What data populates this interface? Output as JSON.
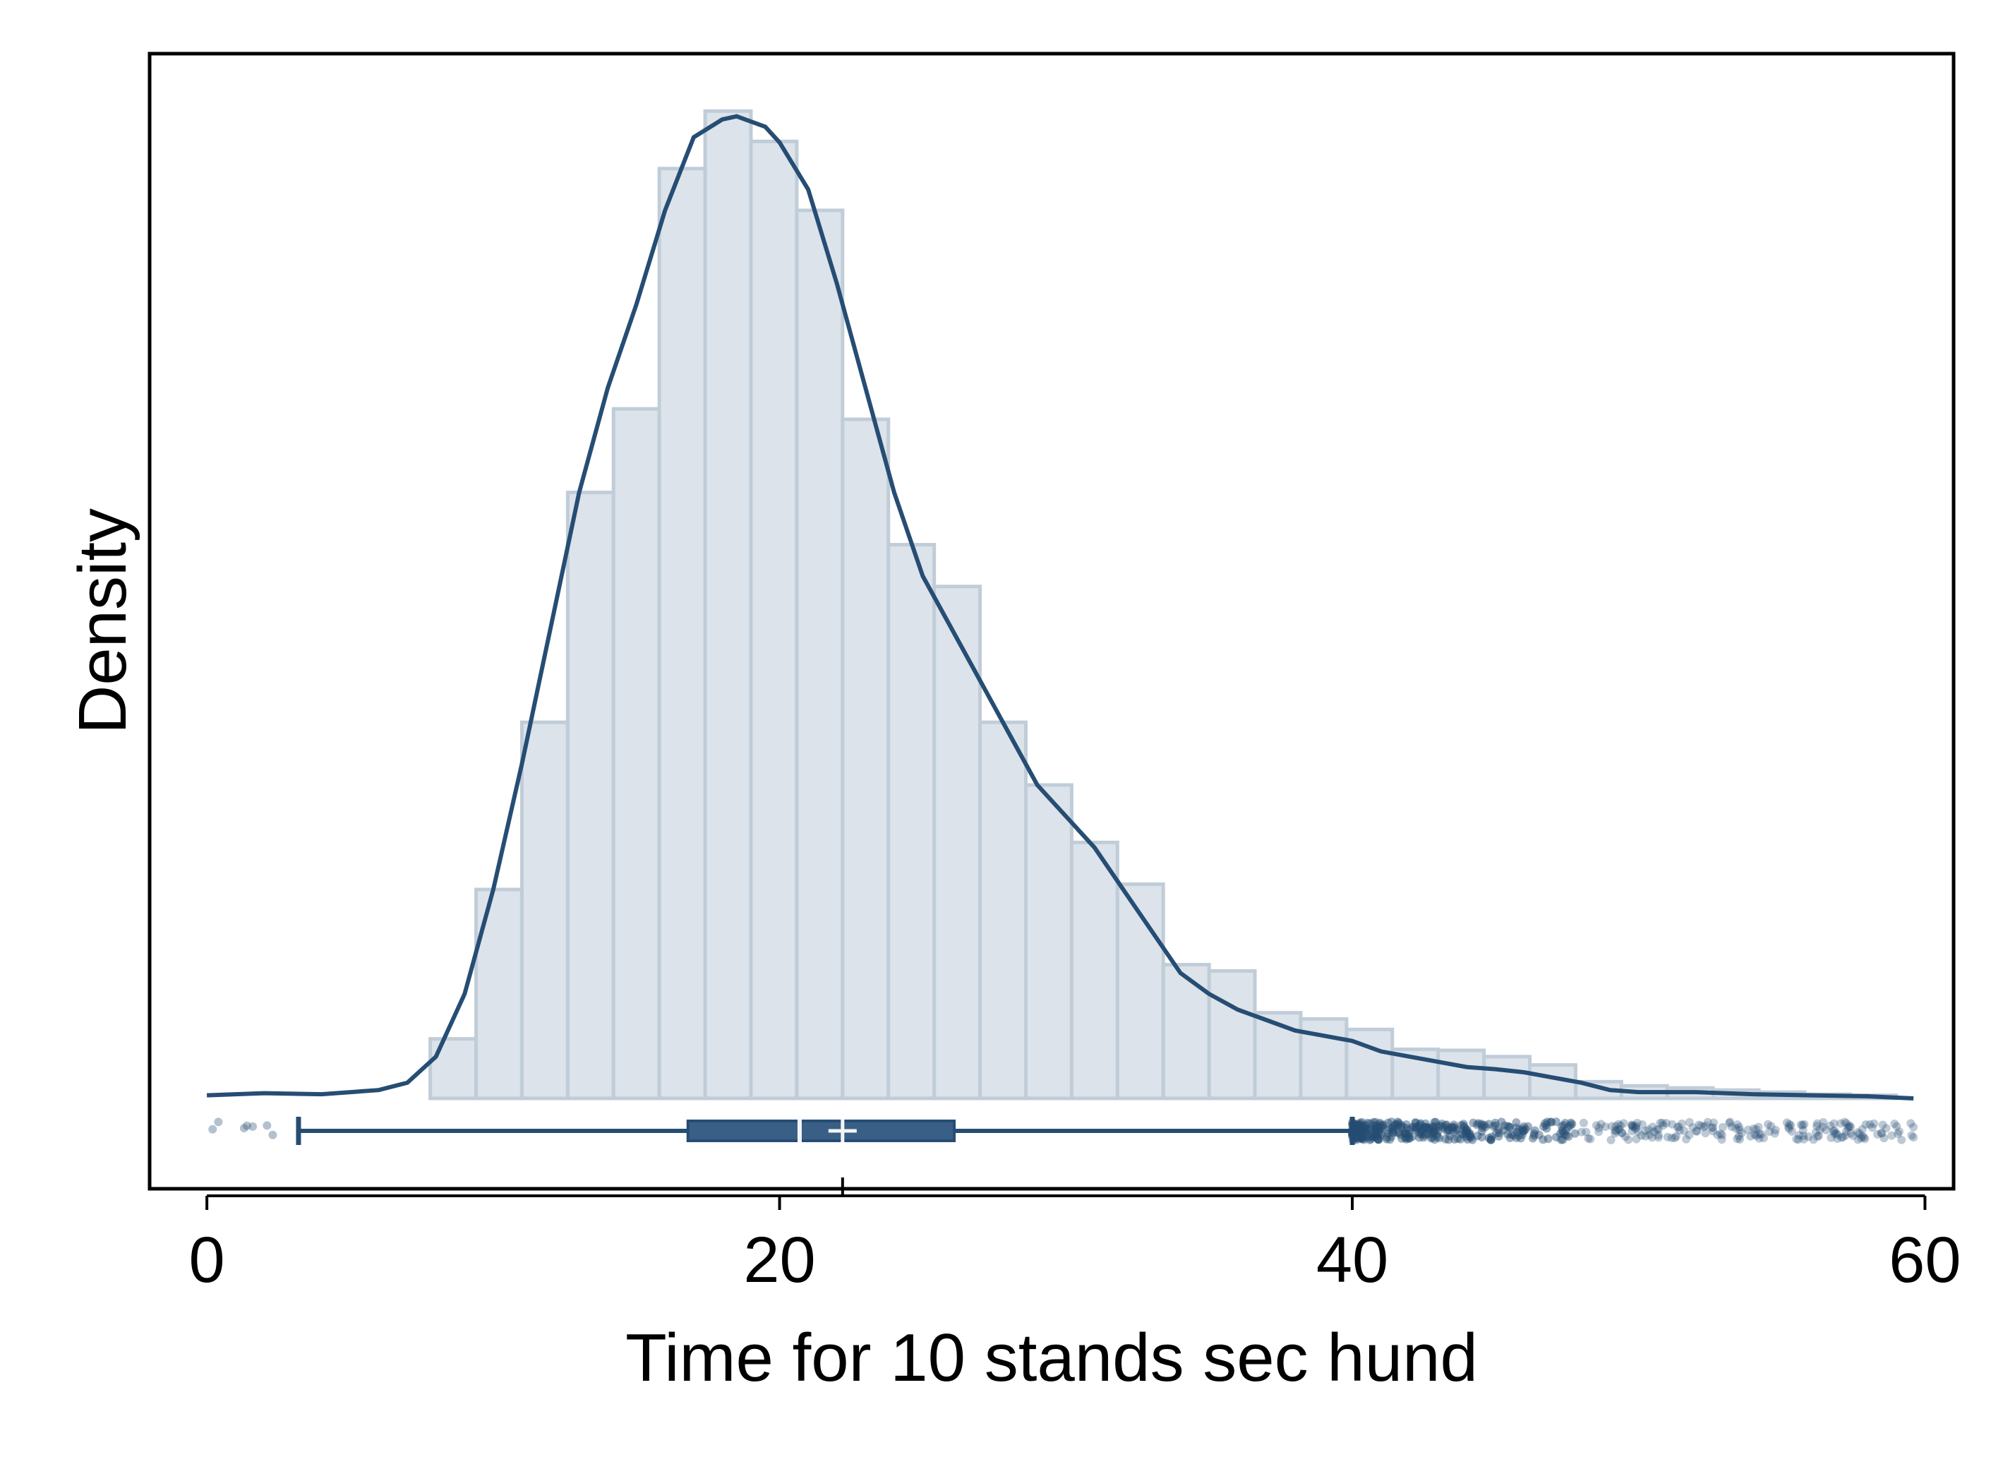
{
  "chart_data": {
    "type": "histogram",
    "xlabel": "Time for 10 stands sec hund",
    "ylabel": "Density",
    "xlim": [
      -2,
      61
    ],
    "ylim": [
      0,
      1.0
    ],
    "x_ticks": [
      0,
      20,
      40,
      60
    ],
    "x_tick_labels": [
      "0",
      "20",
      "40",
      "60"
    ],
    "y_ticks_visible": false,
    "grid": false,
    "legend": "none",
    "colors": {
      "bar_fill": "#dce3ea",
      "bar_stroke": "#c0cdd8",
      "kde_line": "#264d73",
      "box_fill": "#3a5f86",
      "whisker": "#264d73",
      "median_marker": "#f2f5f8",
      "outlier": "#264d73"
    },
    "histogram": {
      "bin_edges": [
        7.8,
        9.4,
        11.0,
        12.6,
        14.2,
        15.8,
        17.4,
        19.0,
        20.6,
        22.2,
        23.8,
        25.4,
        27.0,
        28.6,
        30.2,
        31.8,
        33.4,
        35.0,
        36.6,
        38.2,
        39.8,
        41.4,
        43.0,
        44.6,
        46.2,
        47.8,
        49.4,
        51.0,
        52.6,
        54.2,
        55.8,
        57.4,
        59.0
      ],
      "densities": [
        0.057,
        0.2,
        0.36,
        0.58,
        0.66,
        0.89,
        0.945,
        0.916,
        0.85,
        0.65,
        0.53,
        0.49,
        0.36,
        0.3,
        0.245,
        0.205,
        0.128,
        0.122,
        0.082,
        0.076,
        0.066,
        0.047,
        0.046,
        0.04,
        0.032,
        0.016,
        0.012,
        0.01,
        0.008,
        0.006,
        0.004,
        0.003
      ]
    },
    "kde": {
      "x": [
        0,
        2,
        4,
        6,
        7,
        8,
        9,
        10,
        11,
        12,
        13,
        14,
        15,
        16,
        17,
        18,
        18.5,
        19,
        19.5,
        20,
        21,
        22,
        23,
        24,
        25,
        26,
        27,
        28,
        29,
        30,
        31,
        32,
        33,
        34,
        35,
        36,
        37,
        38,
        39,
        40,
        41,
        42,
        43,
        44,
        45,
        46,
        47,
        48,
        49,
        50,
        52,
        54,
        56,
        58,
        59.6
      ],
      "y": [
        0.003,
        0.005,
        0.004,
        0.008,
        0.015,
        0.04,
        0.1,
        0.2,
        0.32,
        0.45,
        0.58,
        0.68,
        0.76,
        0.85,
        0.92,
        0.937,
        0.94,
        0.935,
        0.93,
        0.915,
        0.87,
        0.78,
        0.68,
        0.58,
        0.5,
        0.45,
        0.4,
        0.35,
        0.3,
        0.27,
        0.24,
        0.2,
        0.16,
        0.12,
        0.1,
        0.085,
        0.075,
        0.065,
        0.06,
        0.055,
        0.045,
        0.04,
        0.035,
        0.03,
        0.028,
        0.025,
        0.02,
        0.015,
        0.008,
        0.006,
        0.006,
        0.004,
        0.003,
        0.002,
        0.0
      ]
    },
    "boxplot": {
      "whisker_low": 3.2,
      "q1": 16.8,
      "median": 20.7,
      "mean": 22.2,
      "q3": 26.1,
      "whisker_high": 40.0,
      "outliers_low": [
        0.2,
        0.4,
        1.3,
        1.4,
        1.6,
        2.1,
        2.3
      ],
      "outliers_high_range": [
        40.0,
        59.6
      ]
    }
  }
}
